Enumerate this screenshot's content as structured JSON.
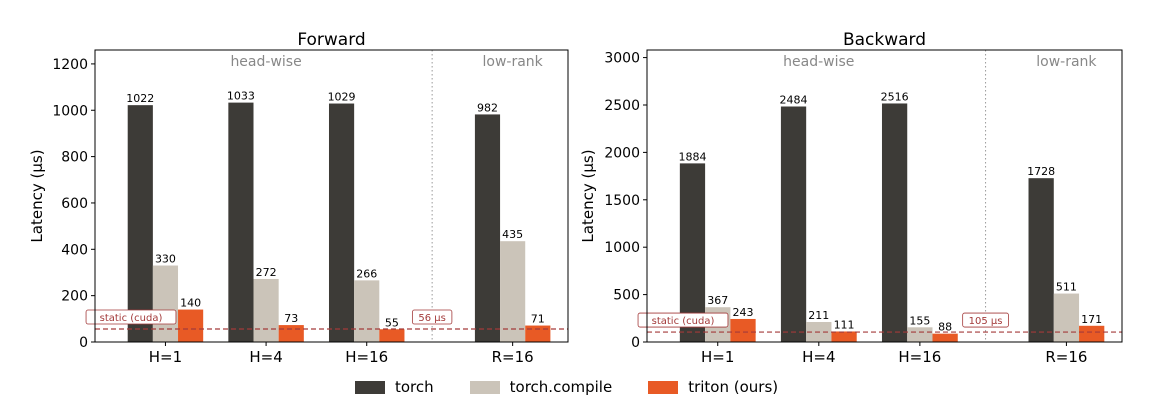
{
  "colors": {
    "torch": "#3d3b37",
    "compile": "#cbc4b9",
    "triton": "#e85a25",
    "baseline": "#a33a3a",
    "divider": "#9a9a9a",
    "region_label": "#888888"
  },
  "legend": [
    {
      "name": "torch",
      "label": "torch"
    },
    {
      "name": "torch-compile",
      "label": "torch.compile"
    },
    {
      "name": "triton",
      "label": "triton (ours)"
    }
  ],
  "chart_data": [
    {
      "type": "bar",
      "title": "Forward",
      "ylabel": "Latency (µs)",
      "ylim": [
        0,
        1260
      ],
      "yticks": [
        0,
        200,
        400,
        600,
        800,
        1000,
        1200
      ],
      "categories": [
        "H=1",
        "H=4",
        "H=16",
        "R=16"
      ],
      "x_positions": [
        0,
        1,
        2,
        3.45
      ],
      "xlim": [
        -0.7,
        4.0
      ],
      "series": [
        {
          "name": "torch",
          "values": [
            1022,
            1033,
            1029,
            982
          ]
        },
        {
          "name": "torch.compile",
          "values": [
            330,
            272,
            266,
            435
          ]
        },
        {
          "name": "triton (ours)",
          "values": [
            140,
            73,
            55,
            71
          ]
        }
      ],
      "regions": [
        {
          "label": "head-wise",
          "center": 1.0
        },
        {
          "label": "low-rank",
          "center": 3.45
        }
      ],
      "divider_x": 2.65,
      "baseline": {
        "value": 56,
        "label_left": "static (cuda)",
        "label_right": "56 µs"
      },
      "grid": false
    },
    {
      "type": "bar",
      "title": "Backward",
      "ylabel": "Latency (µs)",
      "ylim": [
        0,
        3080
      ],
      "yticks": [
        0,
        500,
        1000,
        1500,
        2000,
        2500,
        3000
      ],
      "categories": [
        "H=1",
        "H=4",
        "H=16",
        "R=16"
      ],
      "x_positions": [
        0,
        1,
        2,
        3.45
      ],
      "xlim": [
        -0.7,
        4.0
      ],
      "series": [
        {
          "name": "torch",
          "values": [
            1884,
            2484,
            2516,
            1728
          ]
        },
        {
          "name": "torch.compile",
          "values": [
            367,
            211,
            155,
            511
          ]
        },
        {
          "name": "triton (ours)",
          "values": [
            243,
            111,
            88,
            171
          ]
        }
      ],
      "regions": [
        {
          "label": "head-wise",
          "center": 1.0
        },
        {
          "label": "low-rank",
          "center": 3.45
        }
      ],
      "divider_x": 2.65,
      "baseline": {
        "value": 105,
        "label_left": "static (cuda)",
        "label_right": "105 µs"
      },
      "grid": false
    }
  ]
}
